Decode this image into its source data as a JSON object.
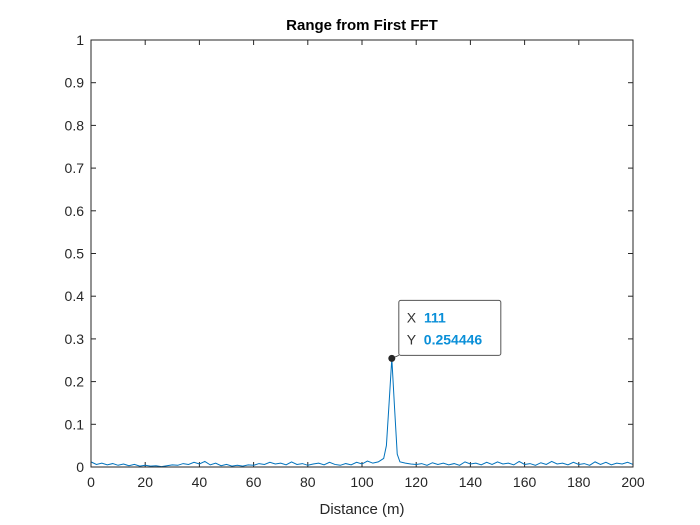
{
  "chart_data": {
    "type": "line",
    "title": "Range from First FFT",
    "xlabel": "Distance (m)",
    "ylabel": "",
    "xlim": [
      0,
      200
    ],
    "ylim": [
      0,
      1
    ],
    "x_ticks": [
      "0",
      "20",
      "40",
      "60",
      "80",
      "100",
      "120",
      "140",
      "160",
      "180",
      "200"
    ],
    "y_ticks": [
      "0",
      "0.1",
      "0.2",
      "0.3",
      "0.4",
      "0.5",
      "0.6",
      "0.7",
      "0.8",
      "0.9",
      "1"
    ],
    "grid": false,
    "series": [
      {
        "color": "#0072bd",
        "x": [
          0,
          2,
          4,
          6,
          8,
          10,
          12,
          14,
          16,
          18,
          20,
          22,
          24,
          26,
          28,
          30,
          32,
          34,
          36,
          38,
          40,
          42,
          44,
          46,
          48,
          50,
          52,
          54,
          56,
          58,
          60,
          62,
          64,
          66,
          68,
          70,
          72,
          74,
          76,
          78,
          80,
          82,
          84,
          86,
          88,
          90,
          92,
          94,
          96,
          98,
          100,
          102,
          104,
          106,
          108,
          109,
          110,
          111,
          112,
          113,
          114,
          116,
          118,
          120,
          122,
          124,
          126,
          128,
          130,
          132,
          134,
          136,
          138,
          140,
          142,
          144,
          146,
          148,
          150,
          152,
          154,
          156,
          158,
          160,
          162,
          164,
          166,
          168,
          170,
          172,
          174,
          176,
          178,
          180,
          182,
          184,
          186,
          188,
          190,
          192,
          194,
          196,
          198,
          200
        ],
        "y": [
          0.012,
          0.006,
          0.009,
          0.005,
          0.008,
          0.004,
          0.007,
          0.003,
          0.006,
          0.002,
          0.004,
          0.002,
          0.003,
          0.001,
          0.003,
          0.005,
          0.004,
          0.008,
          0.006,
          0.011,
          0.007,
          0.013,
          0.005,
          0.009,
          0.003,
          0.006,
          0.002,
          0.004,
          0.002,
          0.005,
          0.004,
          0.008,
          0.006,
          0.011,
          0.007,
          0.009,
          0.005,
          0.012,
          0.006,
          0.008,
          0.004,
          0.007,
          0.009,
          0.005,
          0.011,
          0.006,
          0.004,
          0.008,
          0.005,
          0.011,
          0.007,
          0.014,
          0.009,
          0.012,
          0.02,
          0.05,
          0.15,
          0.254446,
          0.14,
          0.03,
          0.012,
          0.009,
          0.007,
          0.006,
          0.008,
          0.004,
          0.01,
          0.006,
          0.009,
          0.005,
          0.008,
          0.004,
          0.012,
          0.007,
          0.009,
          0.005,
          0.011,
          0.006,
          0.012,
          0.007,
          0.009,
          0.005,
          0.013,
          0.006,
          0.008,
          0.004,
          0.01,
          0.006,
          0.013,
          0.007,
          0.009,
          0.005,
          0.011,
          0.006,
          0.008,
          0.004,
          0.012,
          0.006,
          0.011,
          0.005,
          0.009,
          0.007,
          0.011,
          0.006
        ]
      }
    ],
    "datatip": {
      "x_label": "X",
      "x_value": "111",
      "y_label": "Y",
      "y_value": "0.254446",
      "x": 111,
      "y": 0.254446
    }
  }
}
